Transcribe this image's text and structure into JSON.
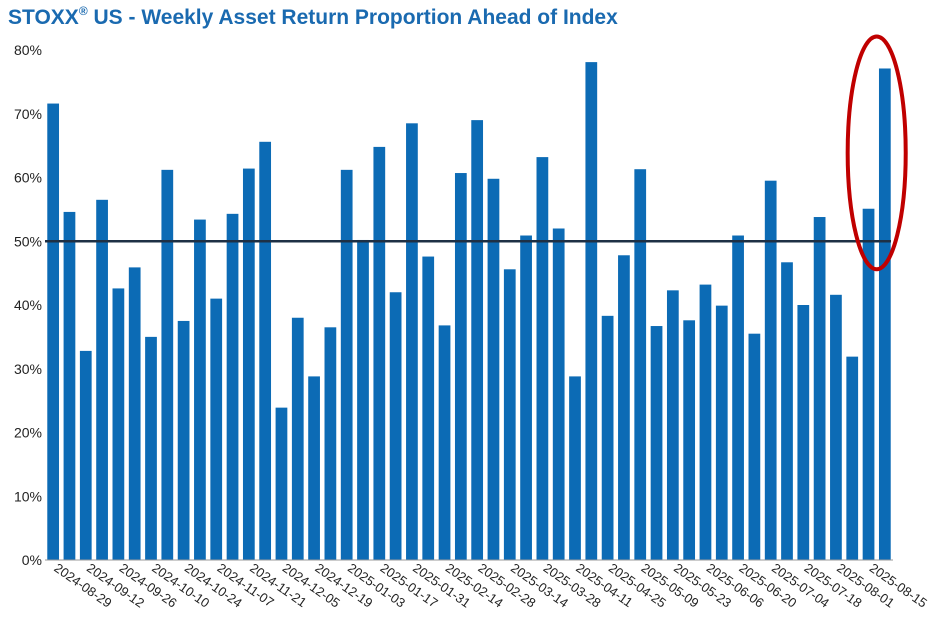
{
  "title": {
    "brand": "STOXX",
    "brand_mark": "®",
    "rest": " US - Weekly Asset Return Proportion Ahead of Index"
  },
  "chart_data": {
    "type": "bar",
    "title": "STOXX® US - Weekly Asset Return Proportion Ahead of Index",
    "xlabel": "",
    "ylabel": "",
    "ylim": [
      0,
      80
    ],
    "y_tick_labels": [
      "0%",
      "10%",
      "20%",
      "30%",
      "40%",
      "50%",
      "60%",
      "70%",
      "80%"
    ],
    "y_tick_values": [
      0,
      10,
      20,
      30,
      40,
      50,
      60,
      70,
      80
    ],
    "x_tick_labels": [
      "2024-08-29",
      "2024-09-12",
      "2024-09-26",
      "2024-10-10",
      "2024-10-24",
      "2024-11-07",
      "2024-11-21",
      "2024-12-05",
      "2024-12-19",
      "2025-01-03",
      "2025-01-17",
      "2025-01-31",
      "2025-02-14",
      "2025-02-28",
      "2025-03-14",
      "2025-03-28",
      "2025-04-11",
      "2025-04-25",
      "2025-05-09",
      "2025-05-23",
      "2025-06-06",
      "2025-06-20",
      "2025-07-04",
      "2025-07-18",
      "2025-08-01",
      "2025-08-15"
    ],
    "x_tick_every": 2,
    "values": [
      71.6,
      54.6,
      32.8,
      56.5,
      42.6,
      45.9,
      35.0,
      61.2,
      37.5,
      53.4,
      41.0,
      54.3,
      61.4,
      65.6,
      23.9,
      38.0,
      28.8,
      36.5,
      61.2,
      50.2,
      64.8,
      42.0,
      68.5,
      47.6,
      36.8,
      60.7,
      69.0,
      59.8,
      45.6,
      50.9,
      63.2,
      52.0,
      28.8,
      78.1,
      38.3,
      47.8,
      61.3,
      36.7,
      42.3,
      37.6,
      43.2,
      39.9,
      50.9,
      35.5,
      59.5,
      46.7,
      40.0,
      53.8,
      41.6,
      31.9,
      55.1,
      77.1
    ],
    "bar_color": "#0c6bb5",
    "reference_line": {
      "value": 50,
      "color": "#1e3045"
    },
    "annotation": {
      "shape": "ellipse",
      "color": "#c00000",
      "highlights_last_bars": 2
    },
    "grid": false,
    "legend": "none"
  }
}
